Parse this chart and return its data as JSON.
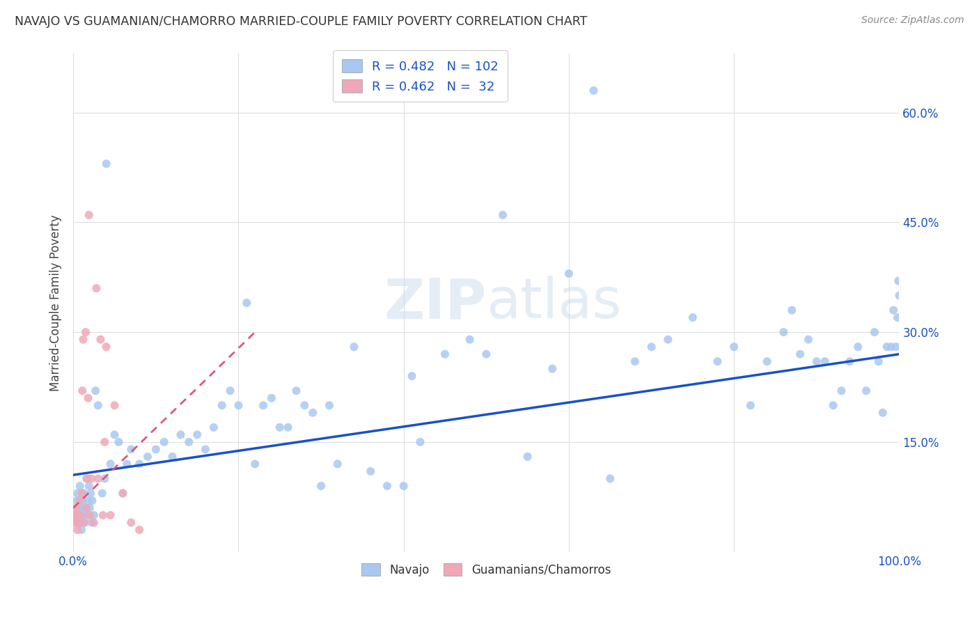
{
  "title": "NAVAJO VS GUAMANIAN/CHAMORRO MARRIED-COUPLE FAMILY POVERTY CORRELATION CHART",
  "source": "Source: ZipAtlas.com",
  "ylabel": "Married-Couple Family Poverty",
  "watermark": "ZIPatlas",
  "navajo_R": 0.482,
  "navajo_N": 102,
  "guam_R": 0.462,
  "guam_N": 32,
  "navajo_color": "#a8c8f0",
  "navajo_line_color": "#1a50c8",
  "guam_color": "#f0a8b8",
  "guam_line_color": "#e05575",
  "background_color": "#ffffff",
  "grid_color": "#dddddd",
  "xlim": [
    0,
    1.0
  ],
  "ylim": [
    0,
    0.68
  ],
  "yticks": [
    0.15,
    0.3,
    0.45,
    0.6
  ],
  "ytick_labels": [
    "15.0%",
    "30.0%",
    "45.0%",
    "60.0%"
  ],
  "navajo_x": [
    0.003,
    0.004,
    0.005,
    0.006,
    0.007,
    0.008,
    0.009,
    0.01,
    0.011,
    0.012,
    0.013,
    0.014,
    0.015,
    0.016,
    0.017,
    0.018,
    0.019,
    0.02,
    0.021,
    0.022,
    0.023,
    0.025,
    0.027,
    0.03,
    0.035,
    0.038,
    0.04,
    0.045,
    0.05,
    0.055,
    0.06,
    0.065,
    0.07,
    0.08,
    0.09,
    0.1,
    0.11,
    0.12,
    0.13,
    0.14,
    0.15,
    0.16,
    0.17,
    0.18,
    0.19,
    0.2,
    0.21,
    0.22,
    0.23,
    0.24,
    0.25,
    0.26,
    0.27,
    0.28,
    0.29,
    0.3,
    0.31,
    0.32,
    0.34,
    0.36,
    0.38,
    0.4,
    0.41,
    0.42,
    0.45,
    0.48,
    0.5,
    0.52,
    0.55,
    0.58,
    0.6,
    0.63,
    0.65,
    0.68,
    0.7,
    0.72,
    0.75,
    0.78,
    0.8,
    0.82,
    0.84,
    0.86,
    0.87,
    0.88,
    0.89,
    0.9,
    0.91,
    0.92,
    0.93,
    0.94,
    0.95,
    0.96,
    0.97,
    0.975,
    0.98,
    0.985,
    0.99,
    0.993,
    0.996,
    0.998,
    0.999,
    1.0
  ],
  "navajo_y": [
    0.05,
    0.07,
    0.08,
    0.06,
    0.04,
    0.09,
    0.06,
    0.03,
    0.07,
    0.05,
    0.08,
    0.04,
    0.06,
    0.1,
    0.05,
    0.07,
    0.09,
    0.06,
    0.08,
    0.04,
    0.07,
    0.05,
    0.22,
    0.2,
    0.08,
    0.1,
    0.53,
    0.12,
    0.16,
    0.15,
    0.08,
    0.12,
    0.14,
    0.12,
    0.13,
    0.14,
    0.15,
    0.13,
    0.16,
    0.15,
    0.16,
    0.14,
    0.17,
    0.2,
    0.22,
    0.2,
    0.34,
    0.12,
    0.2,
    0.21,
    0.17,
    0.17,
    0.22,
    0.2,
    0.19,
    0.09,
    0.2,
    0.12,
    0.28,
    0.11,
    0.09,
    0.09,
    0.24,
    0.15,
    0.27,
    0.29,
    0.27,
    0.46,
    0.13,
    0.25,
    0.38,
    0.63,
    0.1,
    0.26,
    0.28,
    0.29,
    0.32,
    0.26,
    0.28,
    0.2,
    0.26,
    0.3,
    0.33,
    0.27,
    0.29,
    0.26,
    0.26,
    0.2,
    0.22,
    0.26,
    0.28,
    0.22,
    0.3,
    0.26,
    0.19,
    0.28,
    0.28,
    0.33,
    0.28,
    0.32,
    0.37,
    0.35
  ],
  "guam_x": [
    0.001,
    0.002,
    0.003,
    0.004,
    0.005,
    0.006,
    0.007,
    0.008,
    0.009,
    0.01,
    0.011,
    0.012,
    0.013,
    0.015,
    0.016,
    0.017,
    0.018,
    0.019,
    0.02,
    0.022,
    0.025,
    0.028,
    0.03,
    0.033,
    0.036,
    0.038,
    0.04,
    0.045,
    0.05,
    0.06,
    0.07,
    0.08
  ],
  "guam_y": [
    0.04,
    0.05,
    0.06,
    0.04,
    0.03,
    0.05,
    0.04,
    0.07,
    0.05,
    0.08,
    0.22,
    0.29,
    0.04,
    0.3,
    0.06,
    0.1,
    0.21,
    0.46,
    0.05,
    0.1,
    0.04,
    0.36,
    0.1,
    0.29,
    0.05,
    0.15,
    0.28,
    0.05,
    0.2,
    0.08,
    0.04,
    0.03
  ],
  "nav_line_x0": 0.0,
  "nav_line_y0": 0.105,
  "nav_line_x1": 1.0,
  "nav_line_y1": 0.27,
  "gua_line_x0": 0.0,
  "gua_line_y0": 0.06,
  "gua_line_x1": 0.22,
  "gua_line_y1": 0.3
}
